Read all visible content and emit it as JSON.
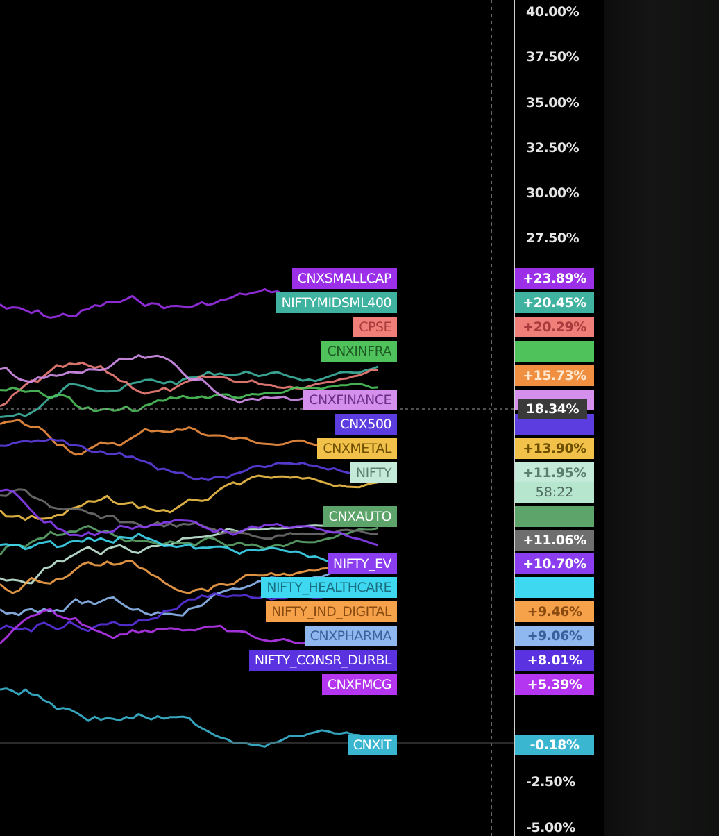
{
  "chart_data": {
    "type": "line",
    "title": "",
    "xlabel": "",
    "ylabel": "",
    "ylim": [
      -5.0,
      40.0
    ],
    "y_ticks": [
      "40.00%",
      "37.50%",
      "35.00%",
      "32.50%",
      "30.00%",
      "27.50%",
      "-2.50%",
      "-5.00%"
    ],
    "crosshair_value": "18.34%",
    "crosshair_time": "58:22",
    "series": [
      {
        "name": "CNXSMALLCAP",
        "label": "+23.89%",
        "value": 23.89,
        "color": "#9b30e8",
        "text_color": "#ffffff"
      },
      {
        "name": "NIFTYMIDSML400",
        "label": "+20.45%",
        "value": 20.45,
        "color": "#3fb2a0",
        "text_color": "#ffffff"
      },
      {
        "name": "CPSE",
        "label": "+20.29%",
        "value": 20.29,
        "color": "#f07f7a",
        "text_color": "#a83c3c"
      },
      {
        "name": "CNXINFRA",
        "label": "",
        "value": 18.9,
        "color": "#4fc25c",
        "text_color": "#1f5a24"
      },
      {
        "name": "",
        "label": "+15.73%",
        "value": 15.73,
        "color": "#f08f40",
        "text_color": "#ffe9d2"
      },
      {
        "name": "CNXFINANCE",
        "label": "",
        "value": 18.34,
        "color": "#d490ec",
        "text_color": "#6c2f86"
      },
      {
        "name": "CNX500",
        "label": "",
        "value": 14.6,
        "color": "#5c3ee0",
        "text_color": "#ffffff"
      },
      {
        "name": "CNXMETAL",
        "label": "+13.90%",
        "value": 13.9,
        "color": "#f2c14a",
        "text_color": "#6e4f00"
      },
      {
        "name": "NIFTY",
        "label": "+11.95%",
        "value": 11.95,
        "color": "#c4ead9",
        "text_color": "#5a7f70"
      },
      {
        "name": "CNXAUTO",
        "label": "",
        "value": 11.4,
        "color": "#5ca46a",
        "text_color": "#ffffff"
      },
      {
        "name": "",
        "label": "+11.06%",
        "value": 11.06,
        "color": "#6e6e6e",
        "text_color": "#ffffff"
      },
      {
        "name": "NIFTY_EV",
        "label": "+10.70%",
        "value": 10.7,
        "color": "#8a3ef0",
        "text_color": "#ffffff"
      },
      {
        "name": "NIFTY_HEALTHCARE",
        "label": "",
        "value": 9.8,
        "color": "#3ed8f0",
        "text_color": "#1b6e80"
      },
      {
        "name": "NIFTY_IND_DIGITAL",
        "label": "+9.46%",
        "value": 9.46,
        "color": "#f5a24a",
        "text_color": "#8a4a10"
      },
      {
        "name": "CNXPHARMA",
        "label": "+9.06%",
        "value": 9.06,
        "color": "#8fb8f0",
        "text_color": "#3a5f9a"
      },
      {
        "name": "NIFTY_CONSR_DURBL",
        "label": "+8.01%",
        "value": 8.01,
        "color": "#5a32e0",
        "text_color": "#ffffff"
      },
      {
        "name": "CNXFMCG",
        "label": "+5.39%",
        "value": 5.39,
        "color": "#b436f0",
        "text_color": "#ffffff"
      },
      {
        "name": "CNXIT",
        "label": "-0.18%",
        "value": -0.18,
        "color": "#3bb6d0",
        "text_color": "#ffffff"
      }
    ]
  }
}
